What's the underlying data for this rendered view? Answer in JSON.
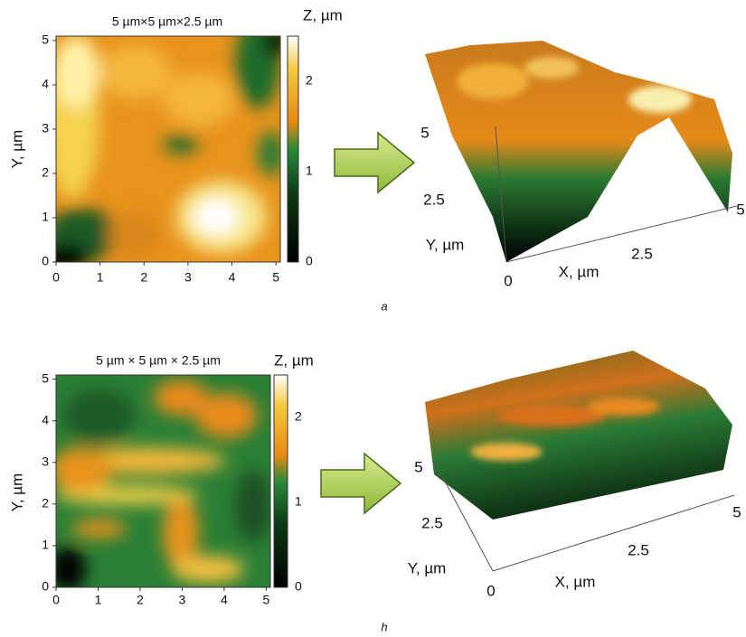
{
  "panels": [
    {
      "heatmap": {
        "title": "5 µm×5 µm×2.5 µm",
        "ylabel": "Y, µm",
        "xticks": [
          "0",
          "1",
          "2",
          "3",
          "4",
          "5"
        ],
        "yticks": [
          "0",
          "1",
          "2",
          "3",
          "4",
          "5"
        ],
        "colorbar": {
          "label": "Z, µm",
          "ticks": [
            "0",
            "1",
            "2"
          ]
        }
      },
      "view3d": {
        "xlabel": "X, µm",
        "ylabel": "Y, µm",
        "origin": "0",
        "xticks": [
          "2.5",
          "5"
        ],
        "yticks": [
          "2.5",
          "5"
        ]
      },
      "caption": "a"
    },
    {
      "heatmap": {
        "title": "5 µm × 5 µm × 2.5 µm",
        "ylabel": "Y, µm",
        "xticks": [
          "0",
          "1",
          "2",
          "3",
          "4",
          "5"
        ],
        "yticks": [
          "0",
          "1",
          "2",
          "3",
          "4",
          "5"
        ],
        "colorbar": {
          "label": "Z, µm",
          "ticks": [
            "0",
            "1",
            "2"
          ]
        }
      },
      "view3d": {
        "xlabel": "X, µm",
        "ylabel": "Y, µm",
        "origin": "0",
        "xticks": [
          "2.5",
          "5"
        ],
        "yticks": [
          "2.5",
          "5"
        ]
      },
      "caption": "h"
    }
  ]
}
